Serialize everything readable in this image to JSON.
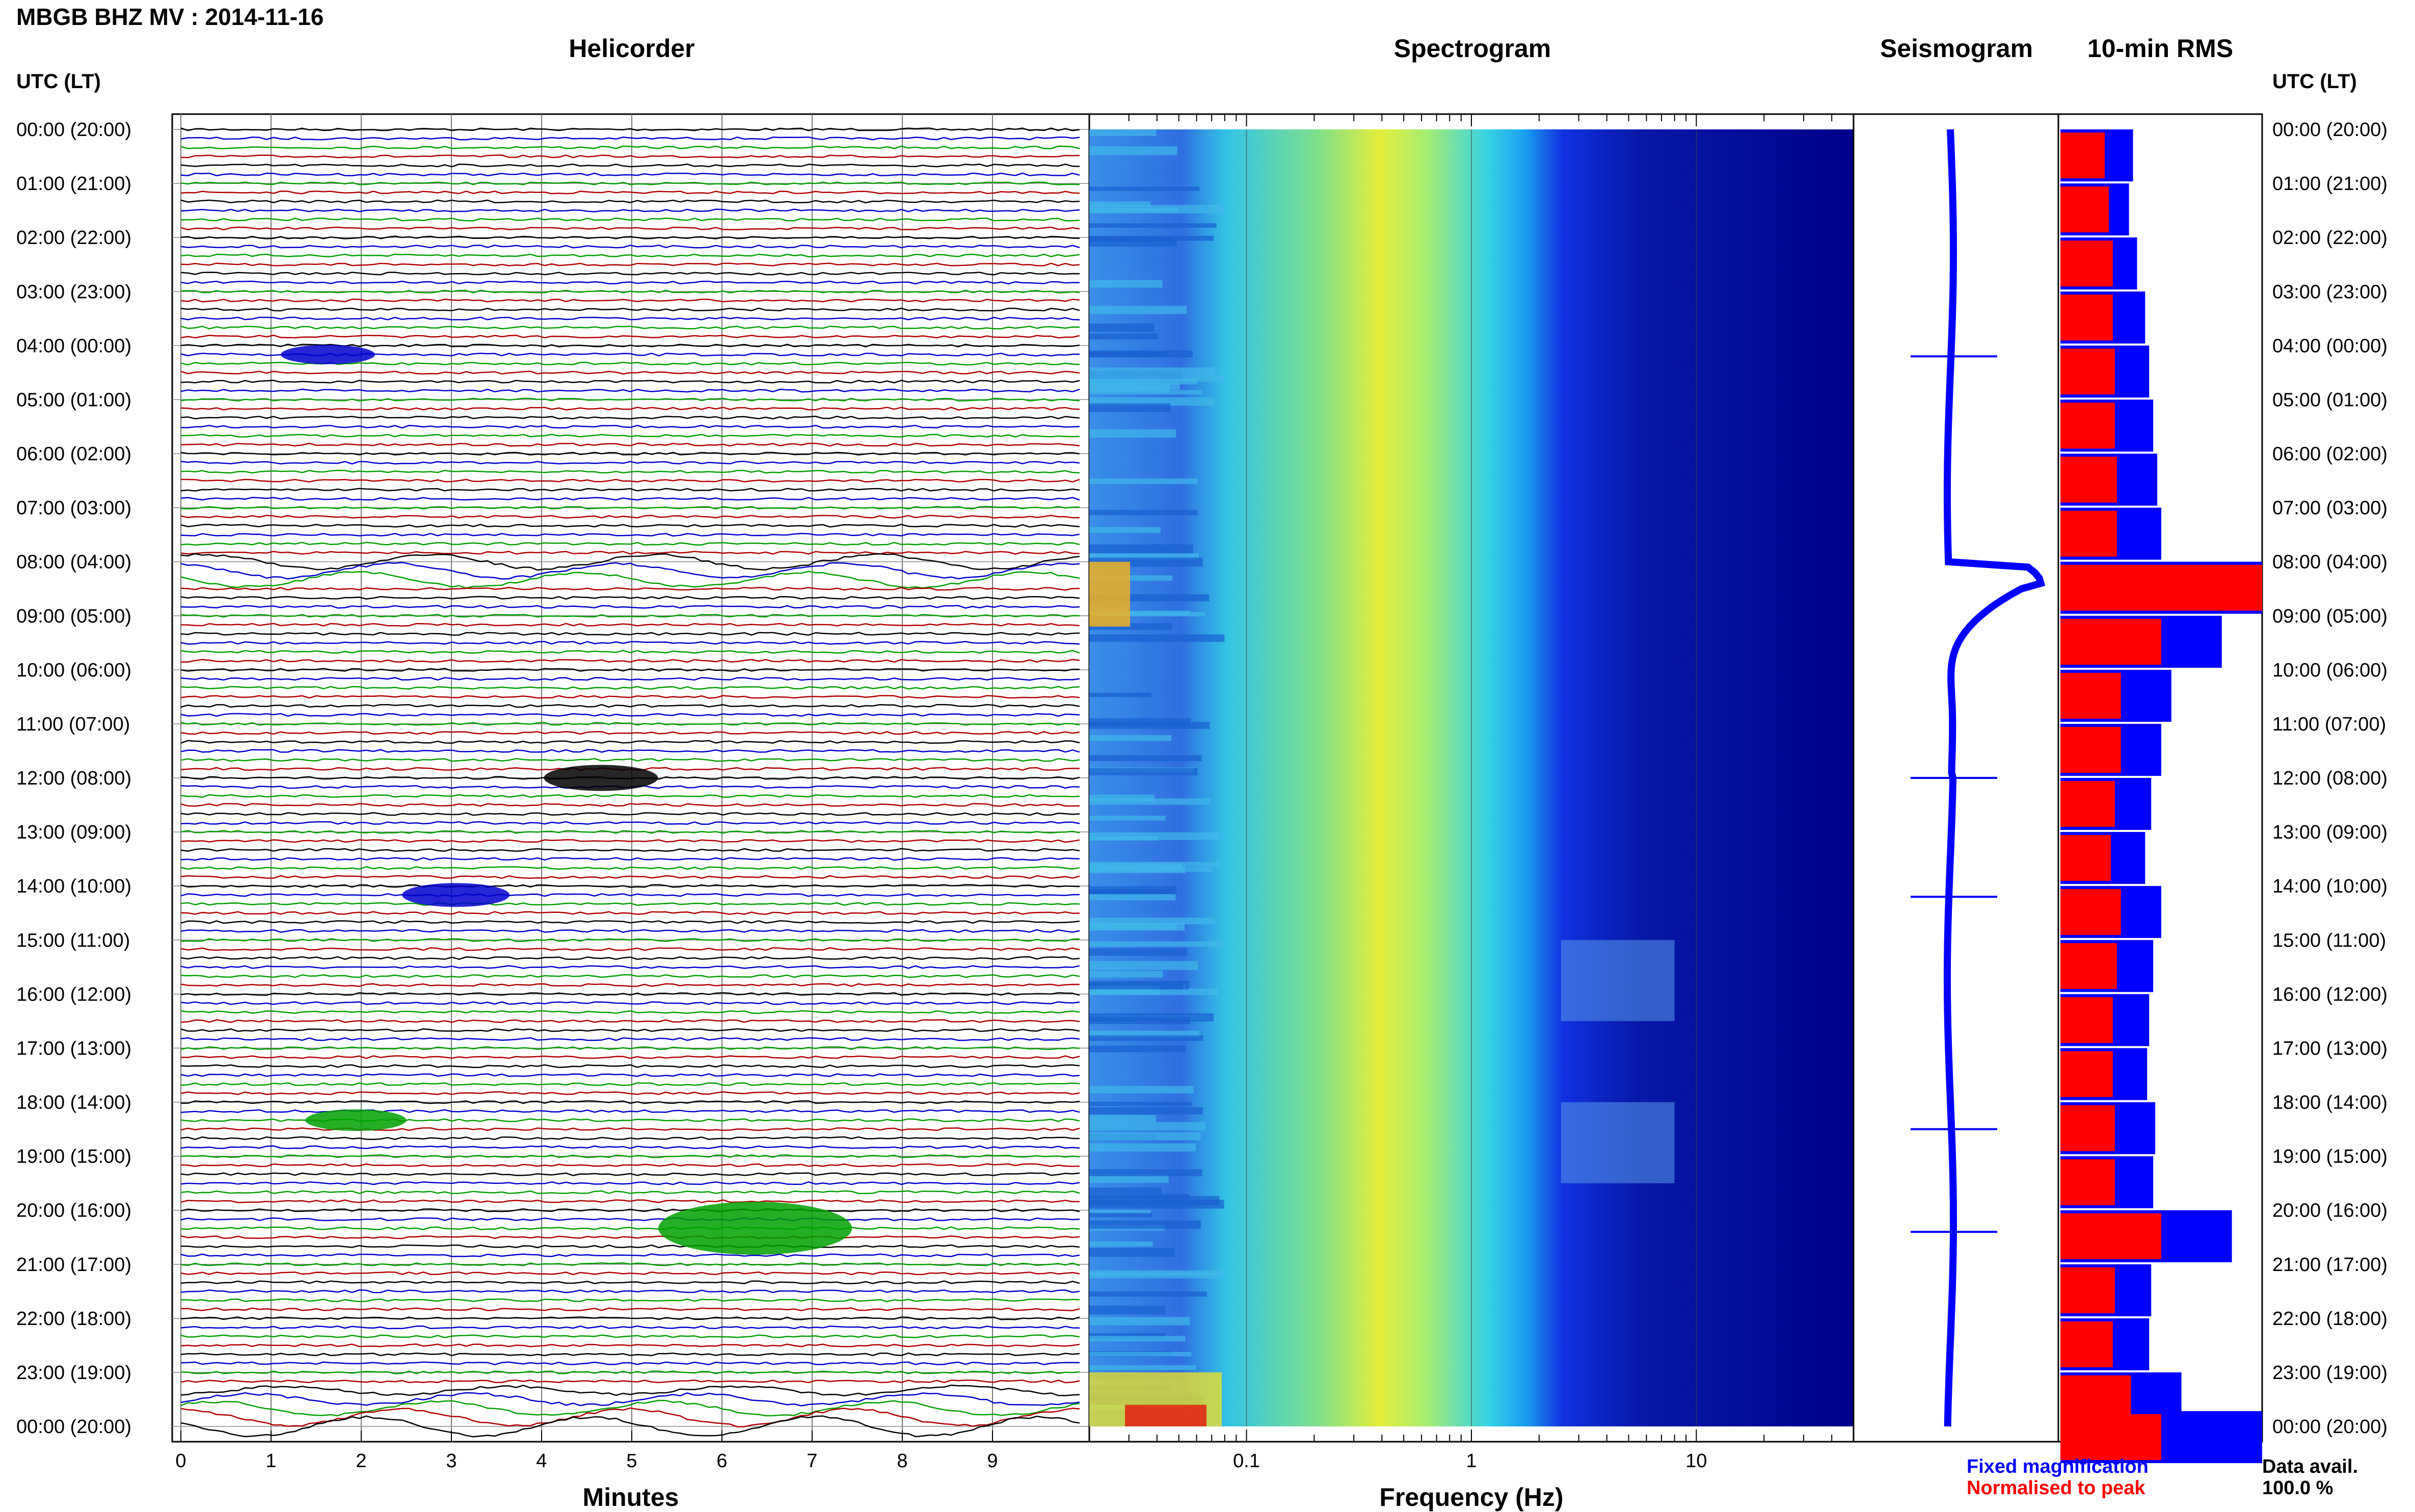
{
  "header": {
    "title": "MBGB BHZ MV : 2014-11-16",
    "panels": [
      "Helicorder",
      "Spectrogram",
      "Seismogram",
      "10-min RMS"
    ],
    "utc_label": "UTC (LT)"
  },
  "legend": {
    "fixed": "Fixed magnification",
    "normalised": "Normalised to peak",
    "data_avail_label": "Data avail.",
    "data_avail_value": "100.0 %"
  },
  "colors": {
    "trace_cycle": [
      "#000000",
      "#0000cc",
      "#00a000",
      "#b00000"
    ],
    "fixed_magnification": "#0000ff",
    "normalised_to_peak": "#ff0000",
    "spectrogram_low": "#00008b",
    "spectrogram_high": "#ff0000"
  },
  "chart_data": [
    {
      "type": "line",
      "panel": "Helicorder",
      "xlabel": "Minutes",
      "x_ticks": [
        "0",
        "1",
        "2",
        "3",
        "4",
        "5",
        "6",
        "7",
        "8",
        "9"
      ],
      "xlim": [
        0,
        10
      ],
      "y_ticks": [
        "00:00 (20:00)",
        "01:00 (21:00)",
        "02:00 (22:00)",
        "03:00 (23:00)",
        "04:00 (00:00)",
        "05:00 (01:00)",
        "06:00 (02:00)",
        "07:00 (03:00)",
        "08:00 (04:00)",
        "09:00 (05:00)",
        "10:00 (06:00)",
        "11:00 (07:00)",
        "12:00 (08:00)",
        "13:00 (09:00)",
        "14:00 (10:00)",
        "15:00 (11:00)",
        "16:00 (12:00)",
        "17:00 (13:00)",
        "18:00 (14:00)",
        "19:00 (15:00)",
        "20:00 (16:00)",
        "21:00 (17:00)",
        "22:00 (18:00)",
        "23:00 (19:00)",
        "00:00 (20:00)"
      ],
      "lines_per_hour": 6,
      "events": [
        {
          "hour": 4.1,
          "minute": 1.5,
          "amplitude": 0.25
        },
        {
          "hour": 12.0,
          "minute": 4.5,
          "amplitude": 0.4
        },
        {
          "hour": 14.1,
          "minute": 2.9,
          "amplitude": 0.35
        },
        {
          "hour": 18.4,
          "minute": 1.8,
          "amplitude": 0.3
        },
        {
          "hour": 20.3,
          "minute": 6.1,
          "amplitude": 1.0
        }
      ]
    },
    {
      "type": "heatmap",
      "panel": "Spectrogram",
      "xlabel": "Frequency (Hz)",
      "x_scale": "log",
      "x_ticks": [
        "0.1",
        "1",
        "10"
      ],
      "xlim": [
        0.02,
        50
      ],
      "ylim_hours": [
        0,
        24
      ]
    },
    {
      "type": "line",
      "panel": "Seismogram",
      "peak_time_hours": 8.4,
      "spikes_hours": [
        4.2,
        12.0,
        14.2,
        18.5,
        20.4
      ]
    },
    {
      "type": "bar",
      "panel": "10-min RMS",
      "series": [
        {
          "name": "Fixed magnification",
          "values": [
            0.36,
            0.34,
            0.38,
            0.42,
            0.44,
            0.46,
            0.48,
            0.5,
            1.2,
            0.8,
            0.55,
            0.5,
            0.45,
            0.42,
            0.5,
            0.46,
            0.44,
            0.43,
            0.47,
            0.46,
            0.85,
            0.45,
            0.44,
            0.6,
            1.0
          ]
        },
        {
          "name": "Normalised to peak",
          "values": [
            0.22,
            0.24,
            0.26,
            0.26,
            0.27,
            0.27,
            0.28,
            0.28,
            1.0,
            0.5,
            0.3,
            0.3,
            0.27,
            0.25,
            0.3,
            0.28,
            0.26,
            0.26,
            0.27,
            0.27,
            0.5,
            0.27,
            0.26,
            0.35,
            0.5
          ]
        }
      ]
    }
  ]
}
